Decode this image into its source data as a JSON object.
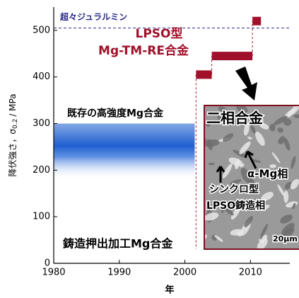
{
  "chart_data": {
    "type": "step_segments",
    "xlabel": "年",
    "ylabel": "降伏強さ，σ",
    "ylabel_sub": "0.2",
    "ylabel_unit": "/ MPa",
    "xlim": [
      1980,
      2016
    ],
    "xticks": [
      1980,
      1990,
      2000,
      2010
    ],
    "ylim": [
      0,
      550
    ],
    "yticks": [
      0,
      100,
      200,
      300,
      400,
      500
    ],
    "reference": {
      "label": "超々ジュラルミン",
      "value": 505,
      "color": "#2a2a8a"
    },
    "band": {
      "label": "既存の高強度Mg合金",
      "x": [
        1980,
        2001.5
      ],
      "y": [
        180,
        300
      ],
      "center": 250,
      "color": "#1f5fd0"
    },
    "segments": {
      "name": [
        "LPSO型",
        "Mg-TM-RE合金"
      ],
      "color": "#a0102a",
      "x_start": [
        2001.7,
        2004.1,
        2010.3
      ],
      "x_end": [
        2004.1,
        2010.3,
        2011.6
      ],
      "values": [
        405,
        445,
        520
      ]
    },
    "annotations": {
      "process": "鋳造押出加工Mg合金",
      "inset_title": "二相合金",
      "alpha": "α-Mg相",
      "lpso1": "シンクロ型",
      "lpso2": "LPSO鋳造相",
      "scale": "20μm"
    }
  }
}
